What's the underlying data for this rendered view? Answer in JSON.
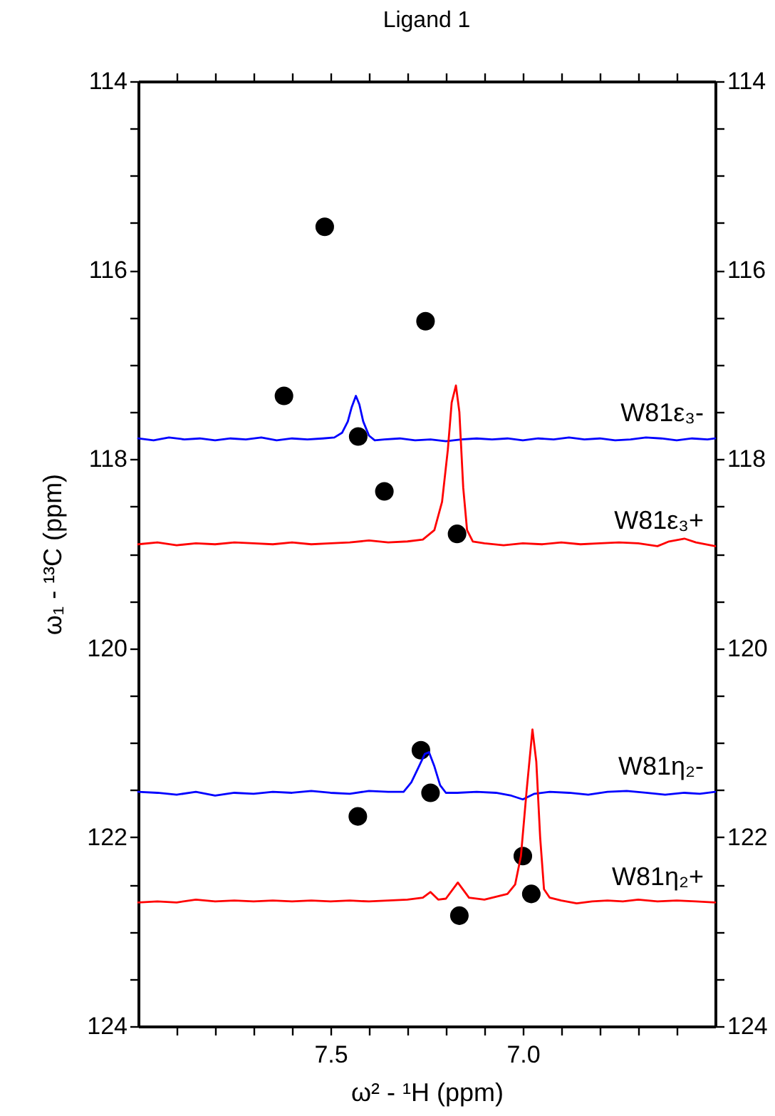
{
  "chart_data": {
    "type": "line",
    "title": "Ligand 1",
    "xlabel": "ω² - ¹H  (ppm)",
    "ylabel": "ω₁ - ¹³C  (ppm)",
    "xlim": [
      8.0,
      6.5
    ],
    "xticks": [
      {
        "value": 7.9,
        "label": null
      },
      {
        "value": 7.8,
        "label": null
      },
      {
        "value": 7.7,
        "label": null
      },
      {
        "value": 7.6,
        "label": null
      },
      7.5,
      {
        "value": 7.4,
        "label": null
      },
      {
        "value": 7.3,
        "label": null
      },
      {
        "value": 7.2,
        "label": null
      },
      {
        "value": 7.1,
        "label": null
      },
      {
        "value": 7.0,
        "label": "7.0"
      },
      {
        "value": 6.9,
        "label": null
      },
      {
        "value": 6.8,
        "label": null
      },
      {
        "value": 6.7,
        "label": null
      },
      {
        "value": 6.6,
        "label": null
      }
    ],
    "ylim": [
      124,
      114
    ],
    "yticks": [
      114,
      {
        "value": 114.5,
        "label": null
      },
      {
        "value": 115,
        "label": null
      },
      {
        "value": 115.5,
        "label": null
      },
      116,
      {
        "value": 116.5,
        "label": null
      },
      {
        "value": 117,
        "label": null
      },
      {
        "value": 117.5,
        "label": null
      },
      118,
      {
        "value": 118.5,
        "label": null
      },
      {
        "value": 119,
        "label": null
      },
      {
        "value": 119.5,
        "label": null
      },
      120,
      {
        "value": 120.5,
        "label": null
      },
      {
        "value": 121,
        "label": null
      },
      {
        "value": 121.5,
        "label": null
      },
      122,
      {
        "value": 122.5,
        "label": null
      },
      {
        "value": 123,
        "label": null
      },
      {
        "value": 123.5,
        "label": null
      },
      124
    ],
    "y2lim": [
      124,
      114
    ],
    "y2ticks": [
      114,
      {
        "value": 114.5,
        "label": null
      },
      {
        "value": 115,
        "label": null
      },
      {
        "value": 115.5,
        "label": null
      },
      116,
      {
        "value": 116.5,
        "label": null
      },
      {
        "value": 117,
        "label": null
      },
      {
        "value": 117.5,
        "label": null
      },
      118,
      {
        "value": 118.5,
        "label": null
      },
      {
        "value": 119,
        "label": null
      },
      {
        "value": 119.5,
        "label": null
      },
      120,
      {
        "value": 120.5,
        "label": null
      },
      {
        "value": 121,
        "label": null
      },
      {
        "value": 121.5,
        "label": null
      },
      122,
      {
        "value": 122.5,
        "label": null
      },
      {
        "value": 123,
        "label": null
      },
      {
        "value": 123.5,
        "label": null
      },
      124
    ],
    "grid": false,
    "legend": false,
    "line_style": "solid",
    "series": [
      {
        "type": "scatter",
        "marker": "circle",
        "color": "#000000",
        "x": [
          7.515,
          7.253,
          7.621,
          7.428,
          7.36,
          7.171,
          7.265,
          7.24,
          7.429,
          7.0,
          6.978,
          7.165
        ],
        "values": [
          115.54,
          116.54,
          117.33,
          117.76,
          118.34,
          118.79,
          121.08,
          121.53,
          121.78,
          122.2,
          122.6,
          122.83
        ]
      },
      {
        "name": "W81ε₃-",
        "color": "#0000ff",
        "x": [
          8.0,
          7.96,
          7.92,
          7.88,
          7.84,
          7.8,
          7.76,
          7.72,
          7.68,
          7.64,
          7.6,
          7.56,
          7.52,
          7.49,
          7.47,
          7.455,
          7.445,
          7.434,
          7.425,
          7.415,
          7.4,
          7.385,
          7.36,
          7.32,
          7.28,
          7.24,
          7.2,
          7.16,
          7.12,
          7.08,
          7.04,
          7.0,
          6.96,
          6.92,
          6.88,
          6.84,
          6.8,
          6.76,
          6.72,
          6.68,
          6.64,
          6.6,
          6.56,
          6.52,
          6.5
        ],
        "values": [
          117.78,
          117.8,
          117.77,
          117.79,
          117.78,
          117.8,
          117.78,
          117.79,
          117.77,
          117.8,
          117.78,
          117.79,
          117.78,
          117.77,
          117.72,
          117.6,
          117.45,
          117.33,
          117.42,
          117.6,
          117.75,
          117.8,
          117.79,
          117.78,
          117.8,
          117.79,
          117.81,
          117.79,
          117.78,
          117.79,
          117.78,
          117.8,
          117.78,
          117.79,
          117.77,
          117.79,
          117.78,
          117.8,
          117.79,
          117.77,
          117.78,
          117.8,
          117.78,
          117.79,
          117.78
        ]
      },
      {
        "name": "W81ε₃+",
        "color": "#ff0000",
        "x": [
          8.0,
          7.95,
          7.9,
          7.85,
          7.8,
          7.75,
          7.7,
          7.65,
          7.6,
          7.55,
          7.5,
          7.45,
          7.4,
          7.35,
          7.3,
          7.26,
          7.23,
          7.21,
          7.195,
          7.185,
          7.174,
          7.165,
          7.155,
          7.145,
          7.13,
          7.1,
          7.05,
          7.0,
          6.95,
          6.9,
          6.85,
          6.8,
          6.75,
          6.7,
          6.65,
          6.62,
          6.58,
          6.55,
          6.5
        ],
        "values": [
          118.9,
          118.88,
          118.91,
          118.89,
          118.9,
          118.88,
          118.89,
          118.9,
          118.88,
          118.9,
          118.89,
          118.88,
          118.86,
          118.88,
          118.87,
          118.85,
          118.75,
          118.45,
          117.9,
          117.4,
          117.22,
          117.5,
          118.3,
          118.75,
          118.87,
          118.89,
          118.91,
          118.89,
          118.9,
          118.88,
          118.9,
          118.89,
          118.88,
          118.89,
          118.92,
          118.87,
          118.84,
          118.88,
          118.92
        ]
      },
      {
        "name": "W81η₂-",
        "color": "#0000ff",
        "x": [
          8.0,
          7.95,
          7.9,
          7.85,
          7.8,
          7.75,
          7.7,
          7.65,
          7.6,
          7.55,
          7.5,
          7.45,
          7.4,
          7.35,
          7.31,
          7.29,
          7.27,
          7.255,
          7.244,
          7.23,
          7.215,
          7.2,
          7.17,
          7.12,
          7.07,
          7.03,
          7.0,
          6.97,
          6.93,
          6.88,
          6.83,
          6.78,
          6.73,
          6.68,
          6.63,
          6.58,
          6.54,
          6.5
        ],
        "values": [
          121.52,
          121.53,
          121.55,
          121.52,
          121.56,
          121.53,
          121.54,
          121.52,
          121.53,
          121.51,
          121.53,
          121.54,
          121.51,
          121.52,
          121.52,
          121.42,
          121.25,
          121.12,
          121.1,
          121.25,
          121.45,
          121.53,
          121.53,
          121.52,
          121.53,
          121.56,
          121.6,
          121.54,
          121.52,
          121.53,
          121.55,
          121.52,
          121.51,
          121.53,
          121.55,
          121.53,
          121.54,
          121.52
        ]
      },
      {
        "name": "W81η₂+",
        "color": "#ff0000",
        "x": [
          8.0,
          7.95,
          7.9,
          7.85,
          7.8,
          7.75,
          7.7,
          7.65,
          7.6,
          7.55,
          7.5,
          7.45,
          7.4,
          7.35,
          7.3,
          7.26,
          7.24,
          7.22,
          7.2,
          7.169,
          7.14,
          7.1,
          7.07,
          7.04,
          7.02,
          7.005,
          6.99,
          6.975,
          6.965,
          6.955,
          6.945,
          6.93,
          6.9,
          6.86,
          6.82,
          6.78,
          6.74,
          6.7,
          6.65,
          6.6,
          6.55,
          6.5
        ],
        "values": [
          122.69,
          122.68,
          122.69,
          122.66,
          122.68,
          122.67,
          122.68,
          122.67,
          122.68,
          122.67,
          122.68,
          122.67,
          122.68,
          122.67,
          122.66,
          122.64,
          122.58,
          122.66,
          122.65,
          122.48,
          122.64,
          122.66,
          122.63,
          122.6,
          122.5,
          122.2,
          121.5,
          120.86,
          121.2,
          122.0,
          122.55,
          122.64,
          122.67,
          122.7,
          122.68,
          122.67,
          122.68,
          122.66,
          122.68,
          122.67,
          122.68,
          122.69
        ]
      }
    ]
  }
}
